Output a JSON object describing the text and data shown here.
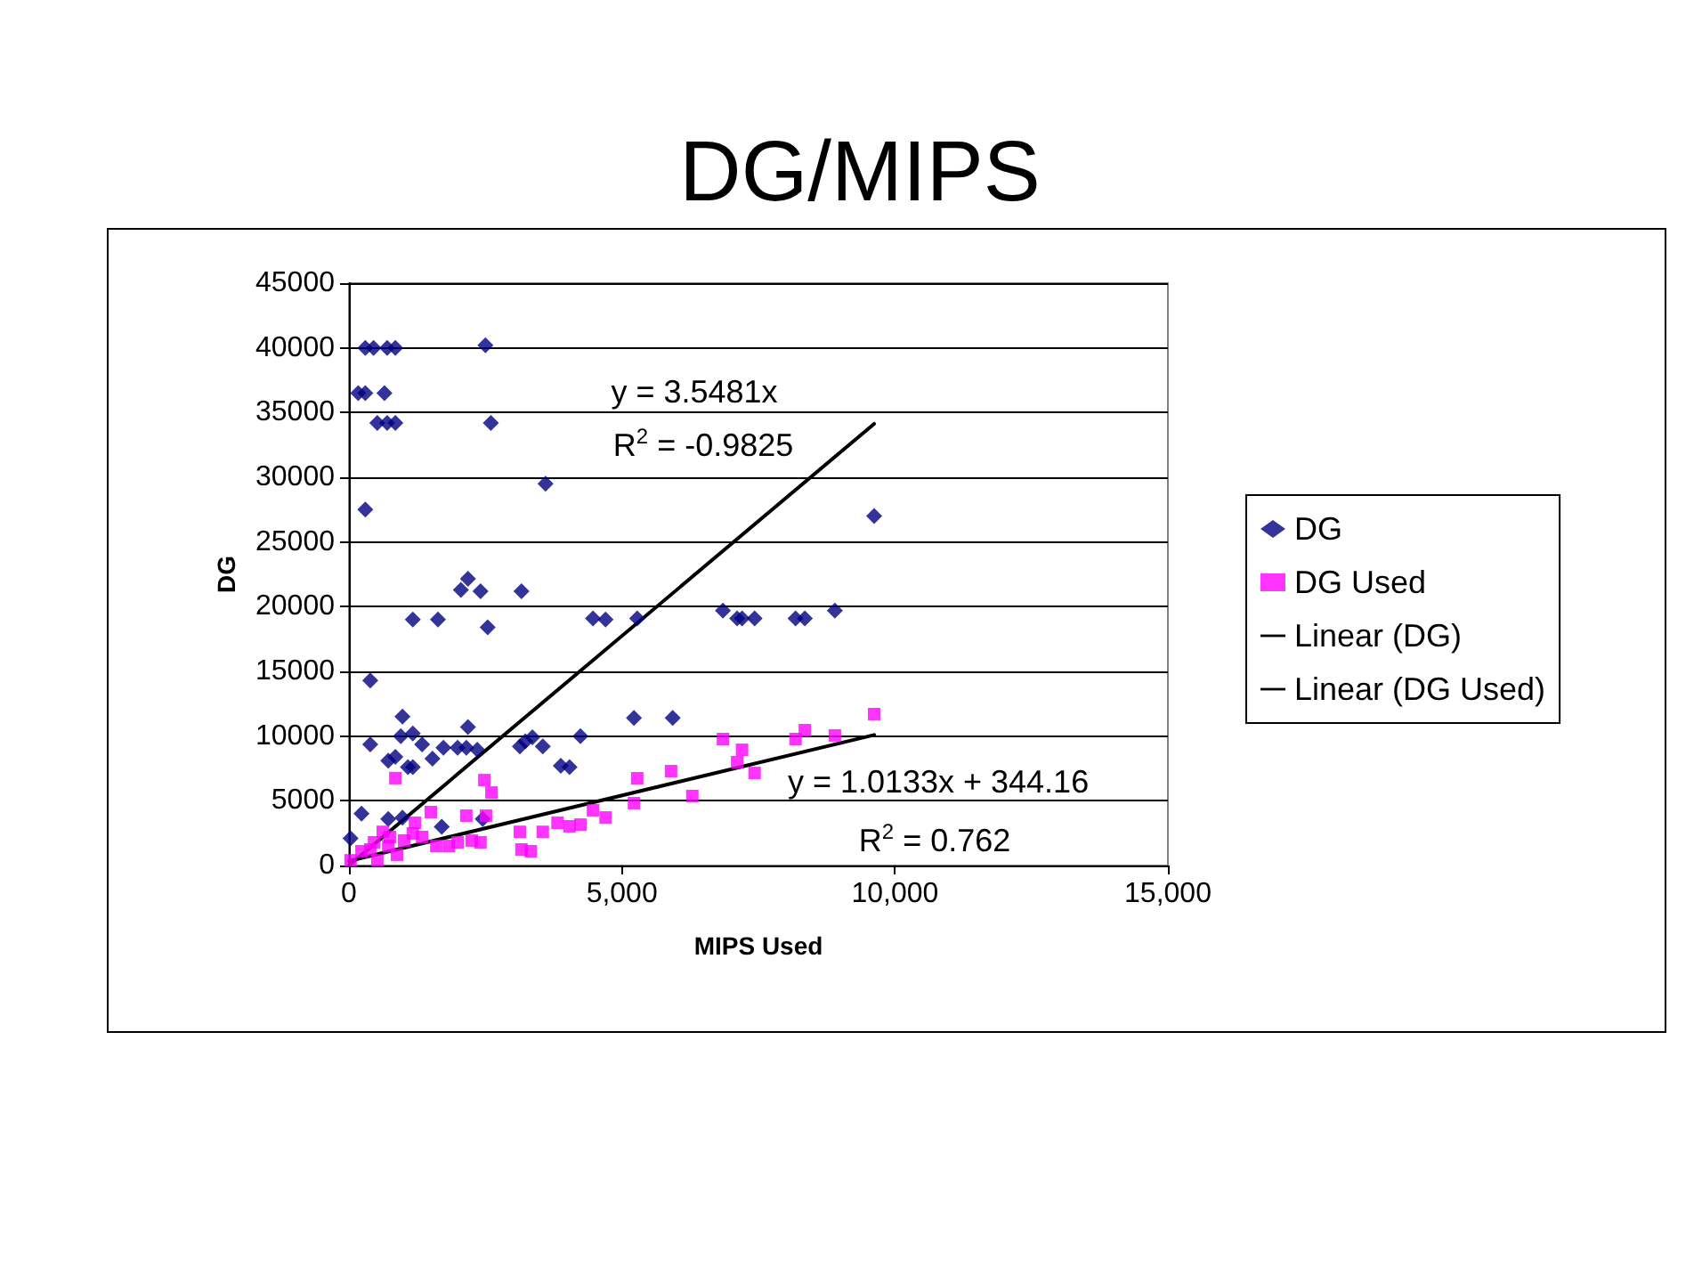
{
  "chart_data": {
    "type": "scatter",
    "title": "DG/MIPS",
    "xlabel": "MIPS Used",
    "ylabel": "DG",
    "xlim": [
      0,
      15000
    ],
    "xticks": [
      0,
      {
        "value": 5000,
        "label": "5,000"
      },
      {
        "value": 10000,
        "label": "10,000"
      },
      {
        "value": 15000,
        "label": "15,000"
      }
    ],
    "ylim": [
      0,
      45000
    ],
    "yticks": [
      0,
      5000,
      10000,
      15000,
      20000,
      25000,
      30000,
      35000,
      40000,
      45000
    ],
    "grid": "y",
    "legend": "right",
    "annotations": [
      "y = 3.5481x",
      "R$^{2}$ = -0.9825",
      "y = 1.0133x + 344.16",
      "R$^{2}$ = 0.762"
    ],
    "series": [
      {
        "name": "DG",
        "marker": "diamond",
        "color": "#000080",
        "x": [
          300,
          450,
          700,
          850,
          2500,
          170,
          300,
          650,
          520,
          700,
          850,
          2600,
          300,
          3600,
          2050,
          2180,
          2410,
          3160,
          1170,
          1630,
          2540,
          4470,
          4700,
          390,
          980,
          390,
          950,
          1170,
          1340,
          720,
          850,
          1080,
          1170,
          1530,
          1730,
          1990,
          2150,
          2350,
          2180,
          3130,
          3230,
          3360,
          3550,
          3880,
          4040,
          4240,
          230,
          30,
          720,
          980,
          1700,
          2450,
          5280,
          6850,
          7110,
          7200,
          7430,
          8180,
          8350,
          8900,
          9620,
          5220,
          5930
        ],
        "values": [
          40000,
          40000,
          40000,
          40000,
          40200,
          36500,
          36500,
          36500,
          34200,
          34200,
          34200,
          34200,
          27500,
          29500,
          21300,
          22150,
          21200,
          21200,
          19000,
          19000,
          18400,
          19100,
          19000,
          14300,
          11500,
          9350,
          10000,
          10200,
          9350,
          8100,
          8400,
          7600,
          7600,
          8250,
          9100,
          9100,
          9100,
          8950,
          10700,
          9200,
          9600,
          9900,
          9200,
          7700,
          7600,
          10000,
          4000,
          2100,
          3600,
          3700,
          3000,
          3600,
          19100,
          19700,
          19100,
          19100,
          19100,
          19100,
          19100,
          19700,
          27000,
          11400,
          11400
        ]
      },
      {
        "name": "DG Used",
        "marker": "square",
        "color": "#ff00ff",
        "x": [
          850,
          2480,
          2610,
          1500,
          2150,
          2510,
          1210,
          30,
          230,
          390,
          520,
          620,
          750,
          880,
          1010,
          1170,
          1340,
          1600,
          1830,
          1990,
          2250,
          2410,
          3130,
          3160,
          3330,
          3550,
          3820,
          4040,
          4240,
          4470,
          720,
          460,
          4700,
          5220,
          5280,
          5900,
          6290,
          6850,
          7110,
          7200,
          7430,
          8180,
          8350,
          8900,
          9620
        ],
        "values": [
          6750,
          6600,
          5640,
          4130,
          3850,
          3850,
          3300,
          400,
          1100,
          1240,
          400,
          2600,
          2200,
          830,
          1930,
          2480,
          2200,
          1510,
          1510,
          1790,
          1930,
          1790,
          2600,
          1240,
          1100,
          2600,
          3300,
          3030,
          3160,
          4270,
          1510,
          1790,
          3710,
          4820,
          6740,
          7290,
          5370,
          9770,
          7980,
          8940,
          7150,
          9770,
          10460,
          10050,
          11700
        ]
      },
      {
        "name": "Linear (DG)",
        "type": "line",
        "marker": "none",
        "line_style": "solid",
        "color": "#000000",
        "x": [
          0,
          9620
        ],
        "values": [
          0,
          34133
        ]
      },
      {
        "name": "Linear (DG Used)",
        "type": "line",
        "marker": "none",
        "line_style": "solid",
        "color": "#000000",
        "x": [
          0,
          9620
        ],
        "values": [
          344,
          10092
        ]
      }
    ]
  }
}
